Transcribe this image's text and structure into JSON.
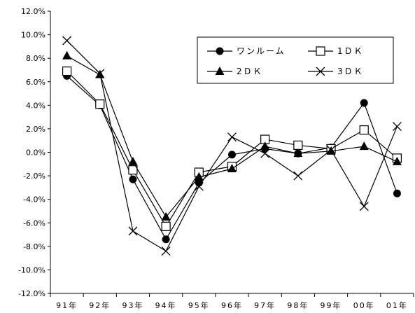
{
  "chart_data": {
    "type": "line",
    "title": "",
    "xlabel": "",
    "ylabel": "",
    "categories": [
      "91年",
      "92年",
      "93年",
      "94年",
      "95年",
      "96年",
      "97年",
      "98年",
      "99年",
      "00年",
      "01年"
    ],
    "ylim": [
      -12,
      12
    ],
    "yticks": [
      -12,
      -10,
      -8,
      -6,
      -4,
      -2,
      0,
      2,
      4,
      6,
      8,
      10,
      12
    ],
    "ytick_labels": [
      "-12.0%",
      "-10.0%",
      "-8.0%",
      "-6.0%",
      "-4.0%",
      "-2.0%",
      "0.0%",
      "2.0%",
      "4.0%",
      "6.0%",
      "8.0%",
      "10.0%",
      "12.0%"
    ],
    "grid": false,
    "legend_position": "top-right",
    "series": [
      {
        "name": "ワンルーム",
        "marker": "circle",
        "values": [
          6.5,
          4.0,
          -2.3,
          -7.4,
          -2.6,
          -0.2,
          0.3,
          -0.1,
          0.4,
          4.2,
          -3.5
        ]
      },
      {
        "name": "1ＤＫ",
        "marker": "square",
        "values": [
          6.9,
          4.1,
          -1.5,
          -6.3,
          -1.7,
          -1.2,
          1.1,
          0.6,
          0.3,
          1.9,
          -0.5
        ]
      },
      {
        "name": "2ＤＫ",
        "marker": "triangle",
        "values": [
          8.2,
          6.6,
          -0.8,
          -5.5,
          -2.1,
          -1.4,
          0.5,
          -0.1,
          0.1,
          0.5,
          -0.8
        ]
      },
      {
        "name": "3ＤＫ",
        "marker": "x",
        "values": [
          9.5,
          6.7,
          -6.7,
          -8.4,
          -2.9,
          1.3,
          -0.1,
          -2.0,
          0.2,
          -4.6,
          2.2
        ]
      }
    ]
  }
}
